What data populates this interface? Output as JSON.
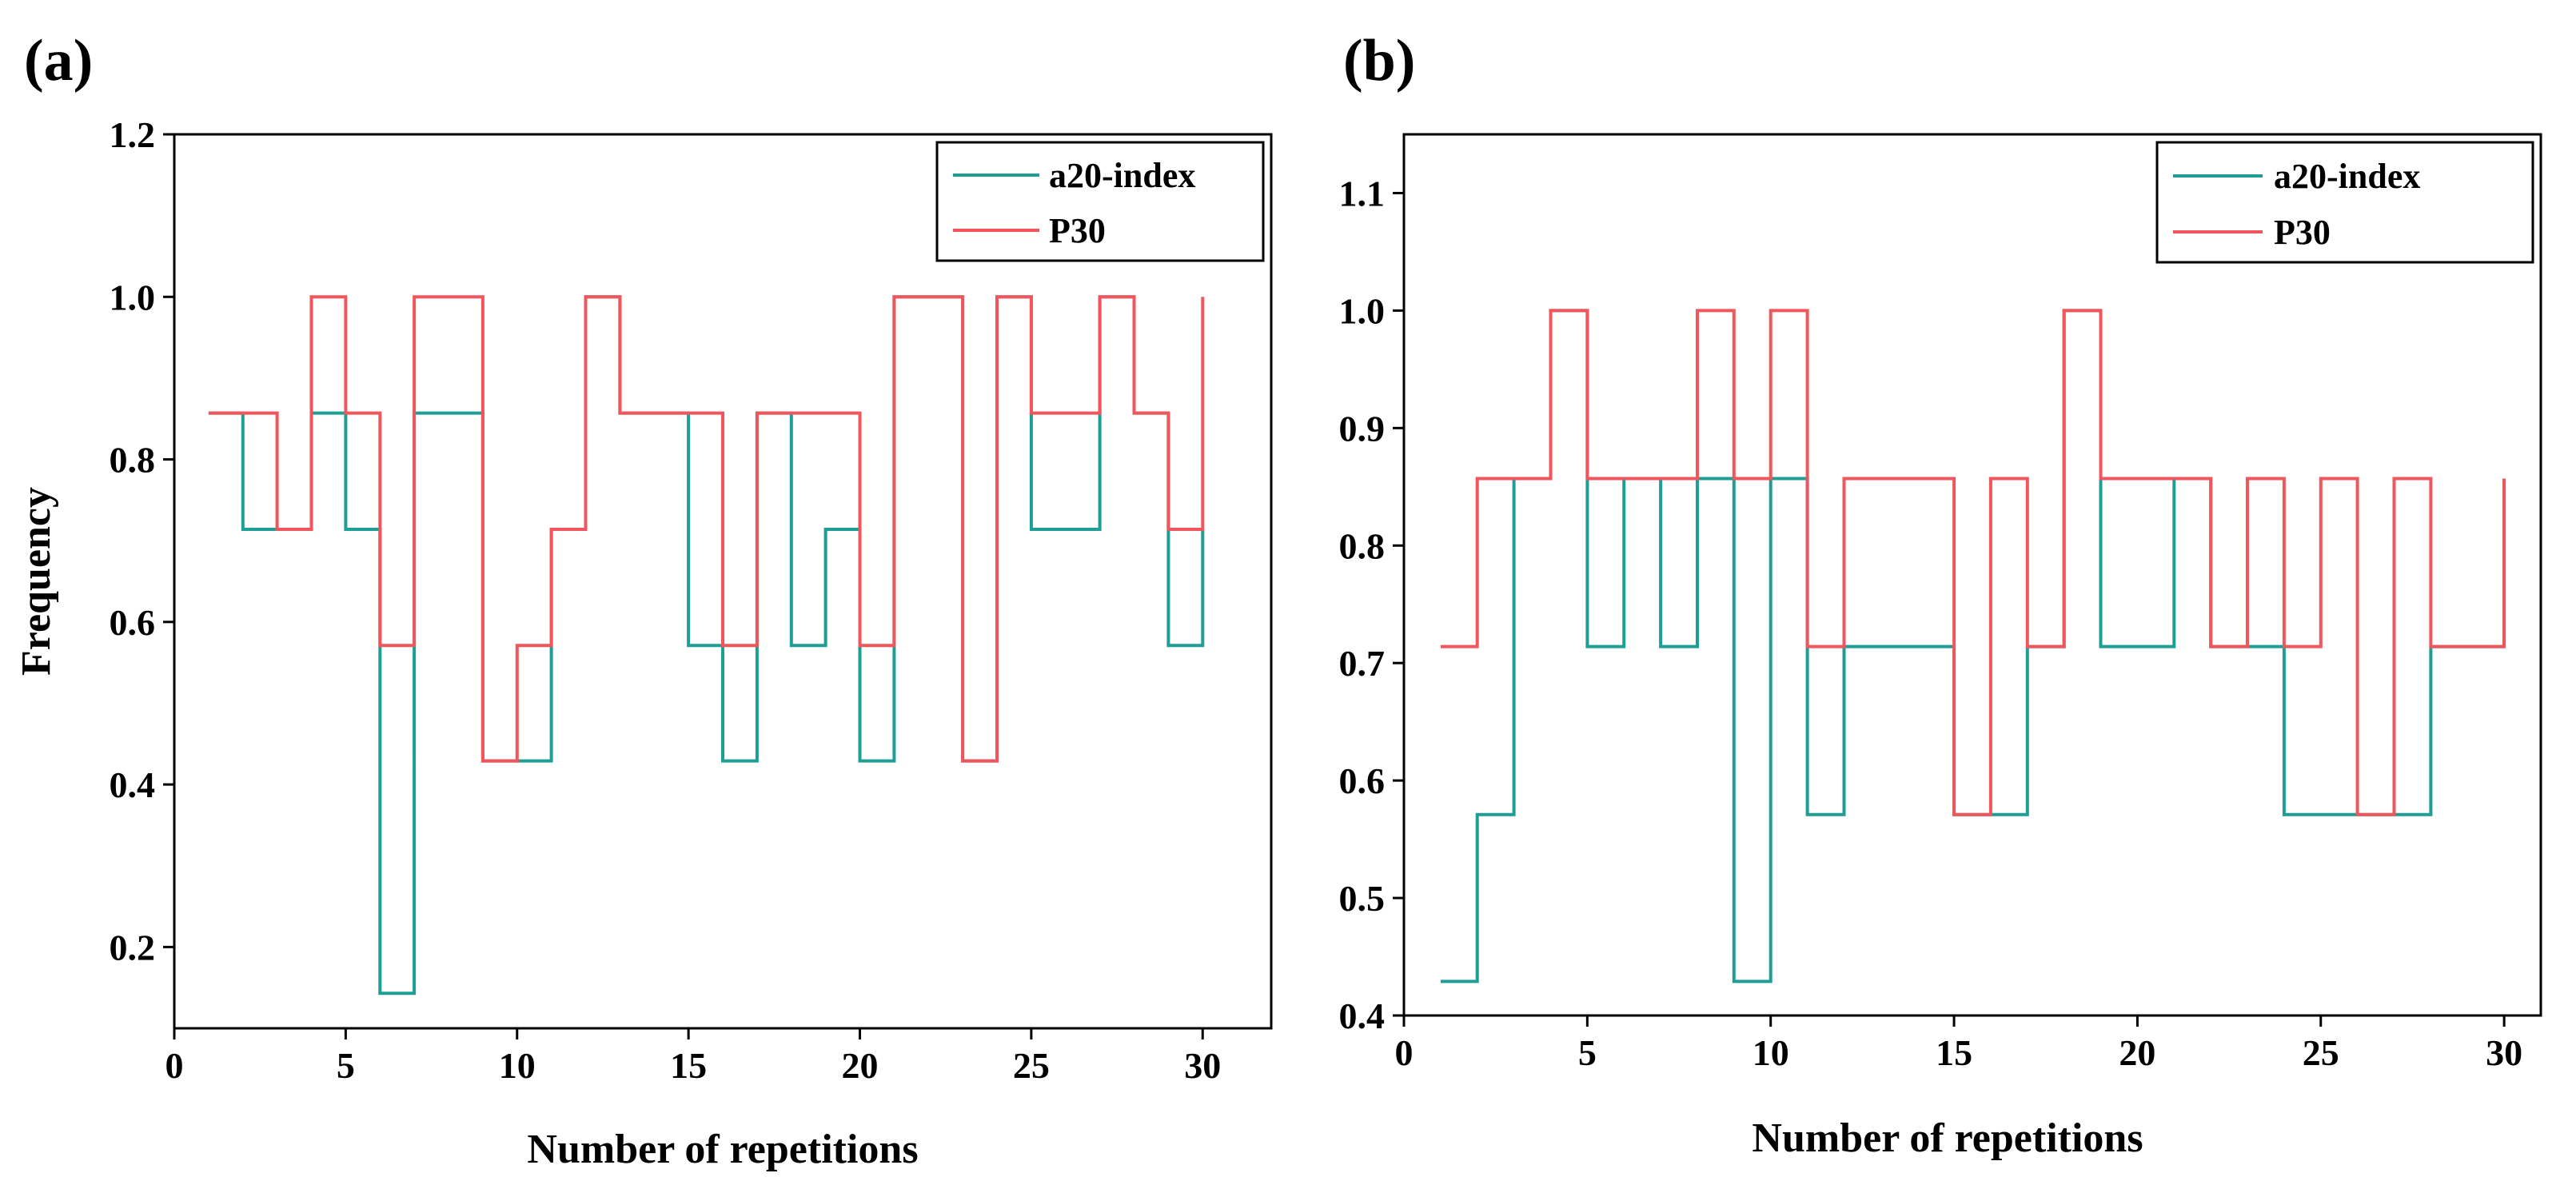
{
  "chart_data": [
    {
      "panel_label": "(a)",
      "type": "line",
      "drawstyle": "steps-post",
      "xlabel": "Number of repetitions",
      "ylabel": "Frequency",
      "xlim": [
        0,
        32
      ],
      "ylim": [
        0.1,
        1.2
      ],
      "xticks": [
        0,
        5,
        10,
        15,
        20,
        25,
        30
      ],
      "xtick_labels": [
        "0",
        "5",
        "10",
        "15",
        "20",
        "25",
        "30"
      ],
      "yticks": [
        0.2,
        0.4,
        0.6,
        0.8,
        1.0,
        1.2
      ],
      "ytick_labels": [
        "0.2",
        "0.4",
        "0.6",
        "0.8",
        "1.0",
        "1.2"
      ],
      "legend_position": "top-right",
      "x": [
        1,
        2,
        3,
        4,
        5,
        6,
        7,
        8,
        9,
        10,
        11,
        12,
        13,
        14,
        15,
        16,
        17,
        18,
        19,
        20,
        21,
        22,
        23,
        24,
        25,
        26,
        27,
        28,
        29,
        30
      ],
      "series": [
        {
          "name": "a20-index",
          "color": "#1f9e96",
          "values": [
            0.857,
            0.714,
            0.714,
            0.857,
            0.714,
            0.143,
            0.857,
            0.857,
            0.429,
            0.429,
            0.714,
            1.0,
            0.857,
            0.857,
            0.571,
            0.429,
            0.857,
            0.571,
            0.714,
            0.429,
            1.0,
            1.0,
            0.429,
            1.0,
            0.714,
            0.714,
            1.0,
            0.857,
            0.571,
            0.714
          ]
        },
        {
          "name": "P30",
          "color": "#f0565c",
          "values": [
            0.857,
            0.857,
            0.714,
            1.0,
            0.857,
            0.571,
            1.0,
            1.0,
            0.429,
            0.571,
            0.714,
            1.0,
            0.857,
            0.857,
            0.857,
            0.571,
            0.857,
            0.857,
            0.857,
            0.571,
            1.0,
            1.0,
            0.429,
            1.0,
            0.857,
            0.857,
            1.0,
            0.857,
            0.714,
            1.0
          ]
        }
      ]
    },
    {
      "panel_label": "(b)",
      "type": "line",
      "drawstyle": "steps-post",
      "xlabel": "Number of repetitions",
      "ylabel": "",
      "xlim": [
        0,
        31
      ],
      "ylim": [
        0.4,
        1.15
      ],
      "xticks": [
        0,
        5,
        10,
        15,
        20,
        25,
        30
      ],
      "xtick_labels": [
        "0",
        "5",
        "10",
        "15",
        "20",
        "25",
        "30"
      ],
      "yticks": [
        0.4,
        0.5,
        0.6,
        0.7,
        0.8,
        0.9,
        1.0,
        1.1
      ],
      "ytick_labels": [
        "0.4",
        "0.5",
        "0.6",
        "0.7",
        "0.8",
        "0.9",
        "1.0",
        "1.1"
      ],
      "legend_position": "top-right",
      "x": [
        1,
        2,
        3,
        4,
        5,
        6,
        7,
        8,
        9,
        10,
        11,
        12,
        13,
        14,
        15,
        16,
        17,
        18,
        19,
        20,
        21,
        22,
        23,
        24,
        25,
        26,
        27,
        28,
        29,
        30
      ],
      "series": [
        {
          "name": "a20-index",
          "color": "#1f9e96",
          "values": [
            0.429,
            0.571,
            0.857,
            1.0,
            0.714,
            0.857,
            0.714,
            0.857,
            0.429,
            0.857,
            0.571,
            0.714,
            0.714,
            0.714,
            0.571,
            0.571,
            0.714,
            1.0,
            0.714,
            0.714,
            0.857,
            0.714,
            0.714,
            0.571,
            0.571,
            0.571,
            0.571,
            0.714,
            0.714,
            0.857
          ]
        },
        {
          "name": "P30",
          "color": "#f0565c",
          "values": [
            0.714,
            0.857,
            0.857,
            1.0,
            0.857,
            0.857,
            0.857,
            1.0,
            0.857,
            1.0,
            0.714,
            0.857,
            0.857,
            0.857,
            0.571,
            0.857,
            0.714,
            1.0,
            0.857,
            0.857,
            0.857,
            0.714,
            0.857,
            0.714,
            0.857,
            0.571,
            0.857,
            0.714,
            0.714,
            0.857
          ]
        }
      ]
    }
  ]
}
